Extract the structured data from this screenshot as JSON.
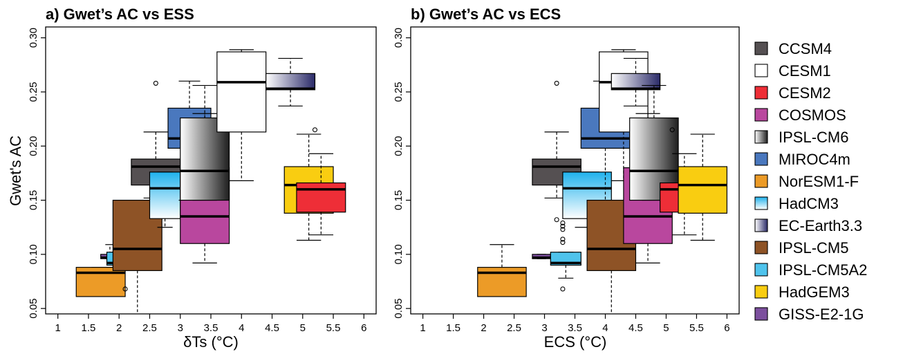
{
  "chart_data": [
    {
      "type": "boxplot",
      "title": "a) Gwet’s AC vs ESS",
      "xlabel": "δTs (°C)",
      "ylabel": "Gwet's AC",
      "xlim": [
        0.8,
        6.2
      ],
      "ylim": [
        0.045,
        0.31
      ],
      "xticks": [
        1,
        1.5,
        2,
        2.5,
        3,
        3.5,
        4,
        4.5,
        5,
        5.5,
        6
      ],
      "yticks": [
        0.05,
        0.1,
        0.15,
        0.2,
        0.25,
        0.3
      ],
      "boxes": [
        {
          "model": "NorESM1-F",
          "x0": 1.3,
          "x1": 2.1,
          "q1": 0.061,
          "median": 0.083,
          "q3": 0.088,
          "whisker_low": 0.061,
          "whisker_high": 0.088,
          "whisker_x": 1.75,
          "outliers": [
            [
              2.1,
              0.068
            ]
          ]
        },
        {
          "model": "GISS-E2-1G",
          "x0": 1.7,
          "x1": 2.0,
          "q1": 0.096,
          "median": 0.097,
          "q3": 0.1,
          "whisker_low": 0.096,
          "whisker_high": 0.109,
          "whisker_x": 1.85,
          "outliers": []
        },
        {
          "model": "IPSL-CM5A2",
          "x0": 1.8,
          "x1": 2.1,
          "q1": 0.09,
          "median": 0.092,
          "q3": 0.102,
          "whisker_low": 0.09,
          "whisker_high": 0.102,
          "whisker_x": 1.95,
          "outliers": []
        },
        {
          "model": "IPSL-CM5",
          "x0": 1.9,
          "x1": 2.7,
          "q1": 0.085,
          "median": 0.105,
          "q3": 0.15,
          "whisker_low": 0.03,
          "whisker_high": 0.15,
          "whisker_x": 2.3,
          "outliers": []
        },
        {
          "model": "CCSM4",
          "x0": 2.2,
          "x1": 3.0,
          "q1": 0.164,
          "median": 0.181,
          "q3": 0.188,
          "whisker_low": 0.152,
          "whisker_high": 0.213,
          "whisker_x": 2.6,
          "outliers": [
            [
              2.6,
              0.258
            ]
          ]
        },
        {
          "model": "HadCM3",
          "x0": 2.5,
          "x1": 3.0,
          "q1": 0.133,
          "median": 0.161,
          "q3": 0.176,
          "whisker_low": 0.125,
          "whisker_high": 0.176,
          "whisker_x": 2.75,
          "outliers": []
        },
        {
          "model": "MIROC4m",
          "x0": 2.8,
          "x1": 3.5,
          "q1": 0.198,
          "median": 0.207,
          "q3": 0.235,
          "whisker_low": 0.15,
          "whisker_high": 0.26,
          "whisker_x": 3.15,
          "outliers": []
        },
        {
          "model": "COSMOS",
          "x0": 3.0,
          "x1": 3.8,
          "q1": 0.11,
          "median": 0.135,
          "q3": 0.18,
          "whisker_low": 0.092,
          "whisker_high": 0.23,
          "whisker_x": 3.4,
          "outliers": []
        },
        {
          "model": "IPSL-CM6",
          "x0": 3.0,
          "x1": 3.8,
          "q1": 0.15,
          "median": 0.177,
          "q3": 0.226,
          "whisker_low": 0.15,
          "whisker_high": 0.256,
          "whisker_x": 3.4,
          "outliers": []
        },
        {
          "model": "CESM1",
          "x0": 3.6,
          "x1": 4.4,
          "q1": 0.213,
          "median": 0.259,
          "q3": 0.287,
          "whisker_low": 0.168,
          "whisker_high": 0.289,
          "whisker_x": 4.0,
          "outliers": []
        },
        {
          "model": "EC-Earth3.3",
          "x0": 4.4,
          "x1": 5.2,
          "q1": 0.252,
          "median": 0.253,
          "q3": 0.267,
          "whisker_low": 0.237,
          "whisker_high": 0.281,
          "whisker_x": 4.8,
          "outliers": []
        },
        {
          "model": "HadGEM3",
          "x0": 4.7,
          "x1": 5.5,
          "q1": 0.138,
          "median": 0.164,
          "q3": 0.181,
          "whisker_low": 0.113,
          "whisker_high": 0.211,
          "whisker_x": 5.1,
          "outliers": [
            [
              5.2,
              0.215
            ]
          ]
        },
        {
          "model": "CESM2",
          "x0": 4.9,
          "x1": 5.7,
          "q1": 0.139,
          "median": 0.16,
          "q3": 0.166,
          "whisker_low": 0.118,
          "whisker_high": 0.193,
          "whisker_x": 5.3,
          "outliers": []
        }
      ]
    },
    {
      "type": "boxplot",
      "title": "b) Gwet’s AC vs ECS",
      "xlabel": "ECS (°C)",
      "ylabel": "",
      "xlim": [
        0.8,
        6.2
      ],
      "ylim": [
        0.045,
        0.31
      ],
      "xticks": [
        1,
        1.5,
        2,
        2.5,
        3,
        3.5,
        4,
        4.5,
        5,
        5.5,
        6
      ],
      "yticks": [
        0.05,
        0.1,
        0.15,
        0.2,
        0.25,
        0.3
      ],
      "boxes": [
        {
          "model": "NorESM1-F",
          "x0": 1.9,
          "x1": 2.7,
          "q1": 0.061,
          "median": 0.083,
          "q3": 0.088,
          "whisker_low": 0.061,
          "whisker_high": 0.109,
          "whisker_x": 2.3,
          "outliers": []
        },
        {
          "model": "GISS-E2-1G",
          "x0": 2.8,
          "x1": 3.1,
          "q1": 0.096,
          "median": 0.097,
          "q3": 0.1,
          "whisker_low": 0.096,
          "whisker_high": 0.1,
          "whisker_x": 2.95,
          "outliers": []
        },
        {
          "model": "IPSL-CM5A2",
          "x0": 3.1,
          "x1": 3.6,
          "q1": 0.09,
          "median": 0.092,
          "q3": 0.102,
          "whisker_low": 0.078,
          "whisker_high": 0.102,
          "whisker_x": 3.35,
          "outliers": [
            [
              3.3,
              0.068
            ]
          ]
        },
        {
          "model": "CCSM4",
          "x0": 2.8,
          "x1": 3.6,
          "q1": 0.164,
          "median": 0.181,
          "q3": 0.188,
          "whisker_low": 0.152,
          "whisker_high": 0.213,
          "whisker_x": 3.2,
          "outliers": [
            [
              3.2,
              0.258
            ]
          ]
        },
        {
          "model": "HadCM3",
          "x0": 3.3,
          "x1": 4.1,
          "q1": 0.133,
          "median": 0.161,
          "q3": 0.176,
          "whisker_low": 0.125,
          "whisker_high": 0.176,
          "whisker_x": 3.7,
          "outliers": [
            [
              3.3,
              0.129
            ],
            [
              3.3,
              0.126
            ],
            [
              3.3,
              0.123
            ],
            [
              3.3,
              0.114
            ],
            [
              3.3,
              0.111
            ],
            [
              3.2,
              0.132
            ]
          ]
        },
        {
          "model": "MIROC4m",
          "x0": 3.6,
          "x1": 4.4,
          "q1": 0.198,
          "median": 0.207,
          "q3": 0.235,
          "whisker_low": 0.15,
          "whisker_high": 0.26,
          "whisker_x": 4.0,
          "outliers": []
        },
        {
          "model": "IPSL-CM5",
          "x0": 3.7,
          "x1": 4.5,
          "q1": 0.085,
          "median": 0.105,
          "q3": 0.15,
          "whisker_low": 0.03,
          "whisker_high": 0.15,
          "whisker_x": 4.1,
          "outliers": []
        },
        {
          "model": "CESM1",
          "x0": 3.9,
          "x1": 4.7,
          "q1": 0.213,
          "median": 0.259,
          "q3": 0.287,
          "whisker_low": 0.168,
          "whisker_high": 0.289,
          "whisker_x": 4.3,
          "outliers": []
        },
        {
          "model": "EC-Earth3.3",
          "x0": 4.1,
          "x1": 4.9,
          "q1": 0.252,
          "median": 0.253,
          "q3": 0.267,
          "whisker_low": 0.237,
          "whisker_high": 0.281,
          "whisker_x": 4.5,
          "outliers": []
        },
        {
          "model": "COSMOS",
          "x0": 4.3,
          "x1": 5.1,
          "q1": 0.11,
          "median": 0.135,
          "q3": 0.18,
          "whisker_low": 0.092,
          "whisker_high": 0.23,
          "whisker_x": 4.7,
          "outliers": []
        },
        {
          "model": "IPSL-CM6",
          "x0": 4.4,
          "x1": 5.2,
          "q1": 0.15,
          "median": 0.177,
          "q3": 0.226,
          "whisker_low": 0.15,
          "whisker_high": 0.256,
          "whisker_x": 4.8,
          "outliers": []
        },
        {
          "model": "CESM2",
          "x0": 4.9,
          "x1": 5.7,
          "q1": 0.139,
          "median": 0.16,
          "q3": 0.166,
          "whisker_low": 0.118,
          "whisker_high": 0.193,
          "whisker_x": 5.3,
          "outliers": [
            [
              5.1,
              0.215
            ]
          ]
        },
        {
          "model": "HadGEM3",
          "x0": 5.2,
          "x1": 6.0,
          "q1": 0.138,
          "median": 0.164,
          "q3": 0.181,
          "whisker_low": 0.113,
          "whisker_high": 0.211,
          "whisker_x": 5.6,
          "outliers": []
        }
      ]
    }
  ],
  "legend": [
    {
      "label": "CCSM4",
      "fill": "solid",
      "color": "#555052"
    },
    {
      "label": "CESM1",
      "fill": "solid",
      "color": "#ffffff"
    },
    {
      "label": "CESM2",
      "fill": "solid",
      "color": "#ee2e37"
    },
    {
      "label": "COSMOS",
      "fill": "solid",
      "color": "#b9479e"
    },
    {
      "label": "IPSL-CM6",
      "fill": "gradient-h",
      "from": "#ffffff",
      "to": "#1e1e1e"
    },
    {
      "label": "MIROC4m",
      "fill": "solid",
      "color": "#4a78be"
    },
    {
      "label": "NorESM1-F",
      "fill": "solid",
      "color": "#ec9b27"
    },
    {
      "label": "HadCM3",
      "fill": "gradient-h",
      "from": "#1fb1ec",
      "to": "#ffffff",
      "dir": "v"
    },
    {
      "label": "EC-Earth3.3",
      "fill": "gradient-h",
      "from": "#ffffff",
      "to": "#2a2a68"
    },
    {
      "label": "IPSL-CM5",
      "fill": "solid",
      "color": "#8e5326"
    },
    {
      "label": "IPSL-CM5A2",
      "fill": "solid",
      "color": "#4fc3ec"
    },
    {
      "label": "HadGEM3",
      "fill": "solid",
      "color": "#f9cd11"
    },
    {
      "label": "GISS-E2-1G",
      "fill": "solid",
      "color": "#7c4f9e"
    }
  ]
}
